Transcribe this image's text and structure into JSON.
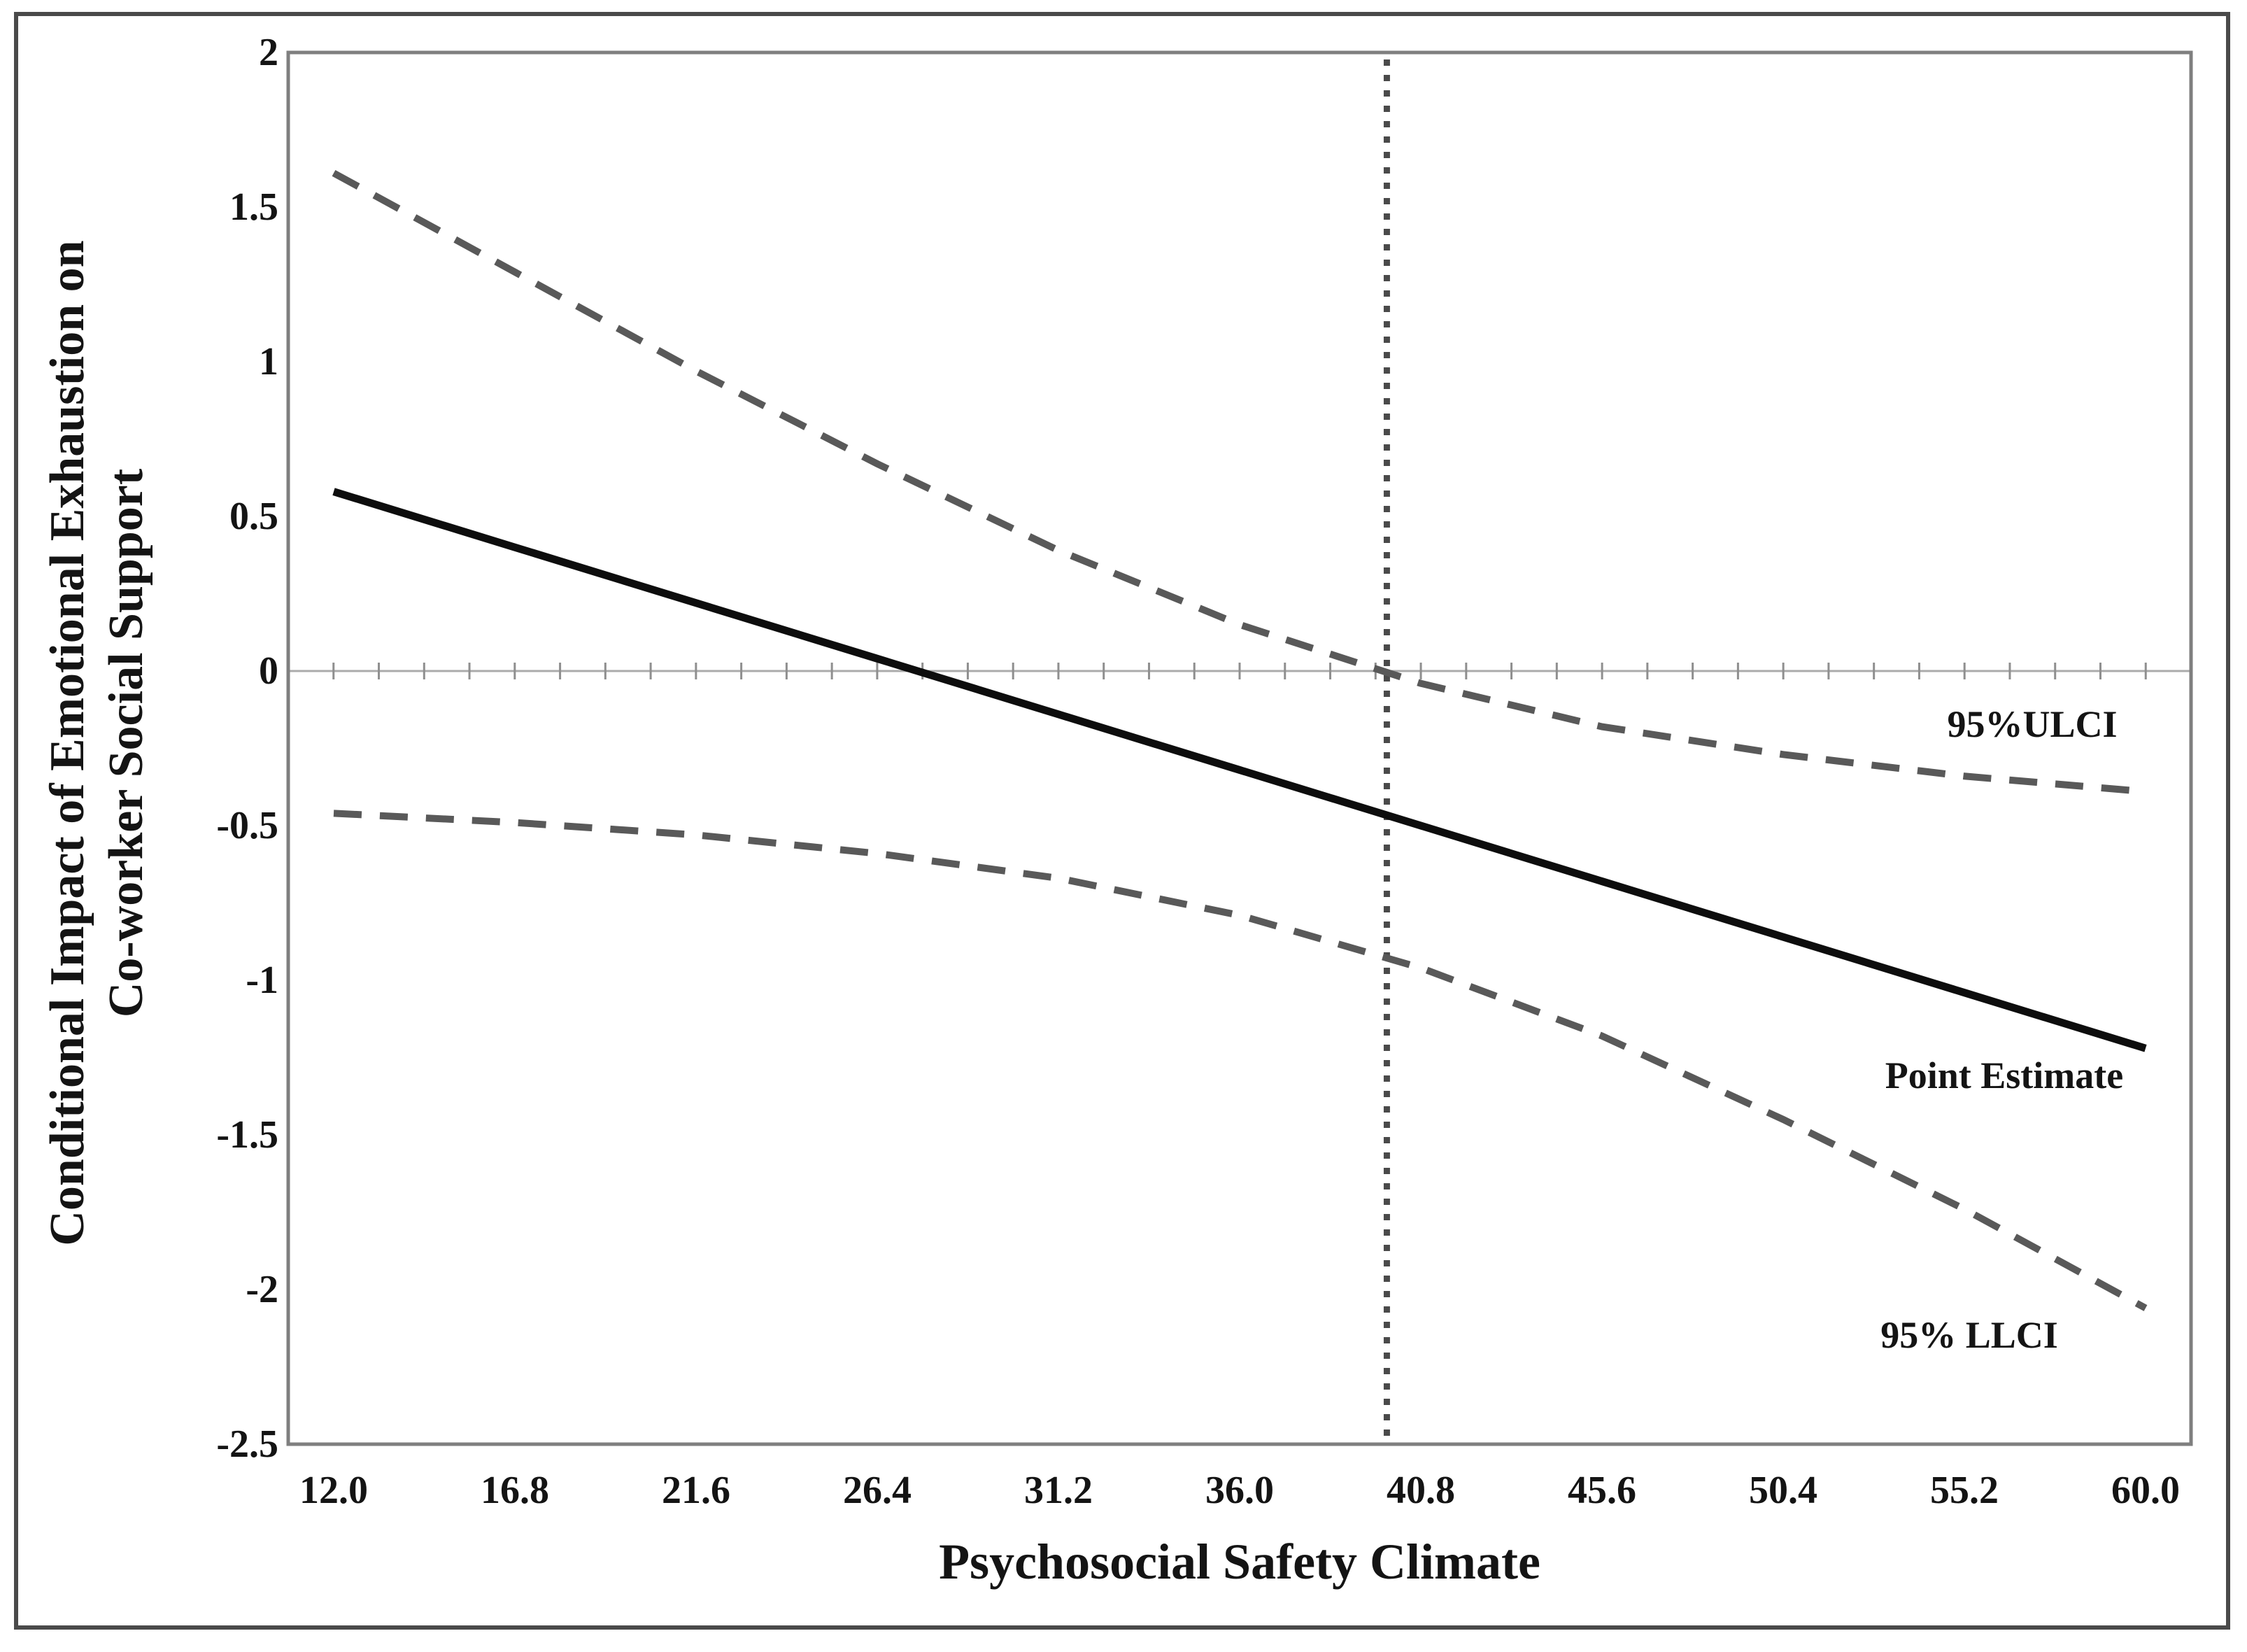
{
  "chart_data": {
    "type": "line",
    "title": "",
    "xlabel": "Psychosocial Safety Climate",
    "ylabel_line1": "Conditional Impact of Emotional Exhaustion on",
    "ylabel_line2": "Co-worker Social Support",
    "x": [
      12.0,
      16.8,
      21.6,
      26.4,
      31.2,
      36.0,
      40.8,
      45.6,
      50.4,
      55.2,
      60.0
    ],
    "x_tick_labels": [
      "12.0",
      "16.8",
      "21.6",
      "26.4",
      "31.2",
      "36.0",
      "40.8",
      "45.6",
      "50.4",
      "55.2",
      "60.0"
    ],
    "y_tick_values": [
      2,
      1.5,
      1,
      0.5,
      0,
      -0.5,
      -1,
      -1.5,
      -2,
      -2.5
    ],
    "y_tick_labels": [
      "2",
      "1.5",
      "1",
      "0.5",
      "0",
      "-0.5",
      "-1",
      "-1.5",
      "-2",
      "-2.5"
    ],
    "xlim": [
      12.0,
      60.0
    ],
    "ylim": [
      -2.5,
      2
    ],
    "grid": false,
    "zero_line": true,
    "jn_vline_x": 39.9,
    "series": [
      {
        "name": "95%ULCI",
        "style": "dashed",
        "color": "#595959",
        "values": [
          1.61,
          1.29,
          0.97,
          0.67,
          0.39,
          0.15,
          -0.04,
          -0.18,
          -0.27,
          -0.34,
          -0.39
        ]
      },
      {
        "name": "Point Estimate",
        "style": "solid",
        "color": "#0d0d0d",
        "values": [
          0.58,
          0.4,
          0.22,
          0.04,
          -0.14,
          -0.32,
          -0.5,
          -0.68,
          -0.86,
          -1.04,
          -1.22
        ]
      },
      {
        "name": "95% LLCI",
        "style": "dashed",
        "color": "#595959",
        "values": [
          -0.46,
          -0.49,
          -0.53,
          -0.59,
          -0.67,
          -0.79,
          -0.96,
          -1.18,
          -1.45,
          -1.74,
          -2.06
        ]
      }
    ],
    "annotations": {
      "ulci_label": "95%ULCI",
      "point_label": "Point Estimate",
      "llci_label": "95% LLCI"
    },
    "legend_position": "inline-right"
  },
  "colors": {
    "frame": "#7f7f7f",
    "zero_line": "#ababab",
    "zero_tick": "#8f8f8f",
    "jn_line": "#4a4a4a",
    "outer_border": "#4a4a4a",
    "text": "#141414"
  }
}
